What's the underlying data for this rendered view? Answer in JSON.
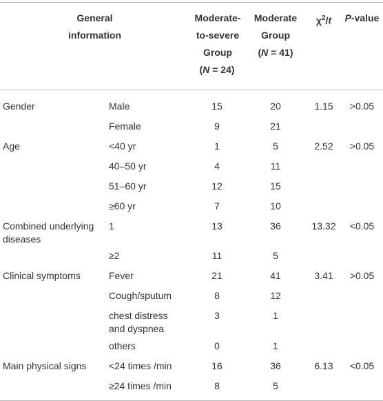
{
  "header": {
    "general_information": "General information",
    "moderate_to_severe": {
      "label": "Moderate-to-severe Group",
      "n_parts": [
        "(",
        "N",
        " = 24)"
      ]
    },
    "moderate": {
      "label": "Moderate Group",
      "n_parts": [
        "(",
        "N",
        " = 41)"
      ]
    },
    "chi_t": [
      "χ",
      "2",
      "/",
      "t"
    ],
    "p_value": [
      "P",
      "-value"
    ]
  },
  "groups": [
    {
      "label": "Gender",
      "chi_t": 1.15,
      "p_value": ">0.05",
      "items": [
        {
          "name": "Male",
          "moderate_to_severe": 15,
          "moderate": 20
        },
        {
          "name": "Female",
          "moderate_to_severe": 9,
          "moderate": 21
        }
      ]
    },
    {
      "label": "Age",
      "chi_t": 2.52,
      "p_value": ">0.05",
      "items": [
        {
          "name": "<40 yr",
          "moderate_to_severe": 1,
          "moderate": 5
        },
        {
          "name": "40–50 yr",
          "moderate_to_severe": 4,
          "moderate": 11
        },
        {
          "name": "51–60 yr",
          "moderate_to_severe": 12,
          "moderate": 15
        },
        {
          "name": "≥60 yr",
          "moderate_to_severe": 7,
          "moderate": 10
        }
      ]
    },
    {
      "label": "Combined underlying diseases",
      "chi_t": 13.32,
      "p_value": "<0.05",
      "items": [
        {
          "name": "1",
          "moderate_to_severe": 13,
          "moderate": 36
        },
        {
          "name": "≥2",
          "moderate_to_severe": 11,
          "moderate": 5
        }
      ]
    },
    {
      "label": "Clinical symptoms",
      "chi_t": 3.41,
      "p_value": ">0.05",
      "items": [
        {
          "name": "Fever",
          "moderate_to_severe": 21,
          "moderate": 41
        },
        {
          "name": "Cough/sputum",
          "moderate_to_severe": 8,
          "moderate": 12
        },
        {
          "name": "chest distress and dyspnea",
          "moderate_to_severe": 3,
          "moderate": 1
        },
        {
          "name": "others",
          "moderate_to_severe": 0,
          "moderate": 1
        }
      ]
    },
    {
      "label": "Main physical signs",
      "chi_t": 6.13,
      "p_value": "<0.05",
      "items": [
        {
          "name": "<24 times /min",
          "moderate_to_severe": 16,
          "moderate": 36
        },
        {
          "name": "≥24 times /min",
          "moderate_to_severe": 8,
          "moderate": 5
        }
      ]
    }
  ]
}
